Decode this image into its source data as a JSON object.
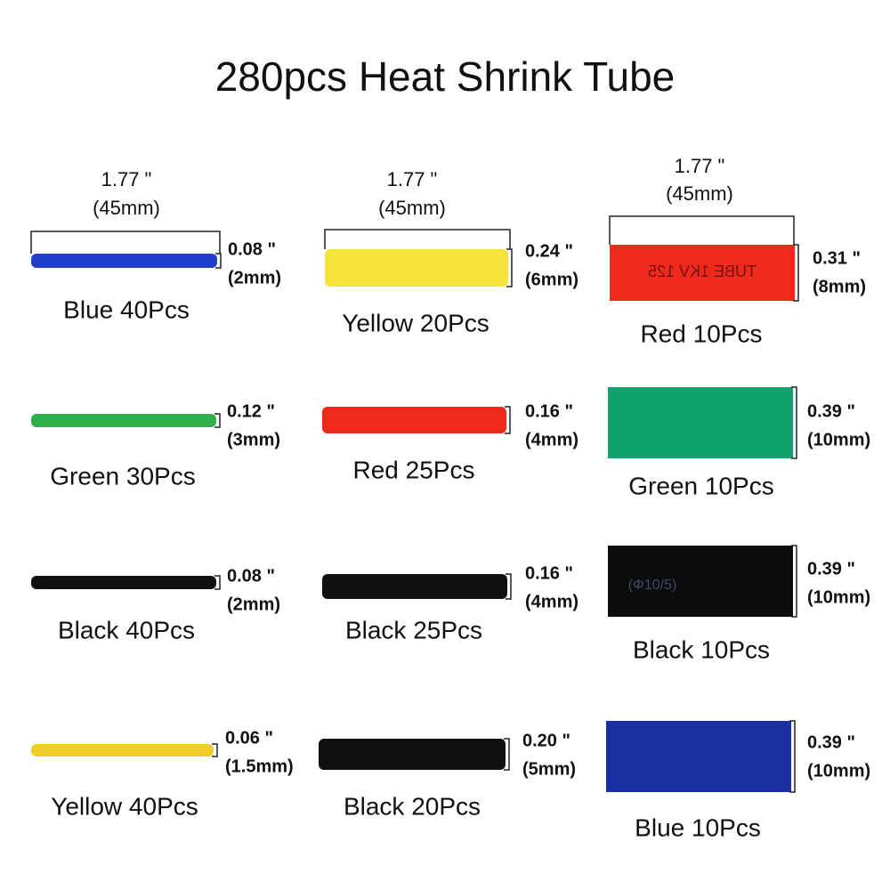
{
  "title": "280pcs Heat Shrink Tube",
  "columns": [
    {
      "length": {
        "inch": "1.77 \"",
        "mm": "(45mm)"
      },
      "items": [
        {
          "name": "Blue 40Pcs",
          "inch": "0.08 \"",
          "mm": "(2mm)"
        },
        {
          "name": "Green 30Pcs",
          "inch": "0.12 \"",
          "mm": "(3mm)"
        },
        {
          "name": "Black 40Pcs",
          "inch": "0.08 \"",
          "mm": "(2mm)"
        },
        {
          "name": "Yellow 40Pcs",
          "inch": "0.06 \"",
          "mm": "(1.5mm)"
        }
      ]
    },
    {
      "length": {
        "inch": "1.77 \"",
        "mm": "(45mm)"
      },
      "items": [
        {
          "name": "Yellow 20Pcs",
          "inch": "0.24 \"",
          "mm": "(6mm)"
        },
        {
          "name": "Red 25Pcs",
          "inch": "0.16 \"",
          "mm": "(4mm)"
        },
        {
          "name": "Black 25Pcs",
          "inch": "0.16 \"",
          "mm": "(4mm)"
        },
        {
          "name": "Black 20Pcs",
          "inch": "0.20 \"",
          "mm": "(5mm)"
        }
      ]
    },
    {
      "length": {
        "inch": "1.77 \"",
        "mm": "(45mm)"
      },
      "items": [
        {
          "name": "Red 10Pcs",
          "inch": "0.31 \"",
          "mm": "(8mm)"
        },
        {
          "name": "Green 10Pcs",
          "inch": "0.39 \"",
          "mm": "(10mm)"
        },
        {
          "name": "Black 10Pcs",
          "inch": "0.39 \"",
          "mm": "(10mm)"
        },
        {
          "name": "Blue 10Pcs",
          "inch": "0.39 \"",
          "mm": "(10mm)"
        }
      ]
    }
  ],
  "tube_prints": [
    "TUBE 1KV 125",
    "(Φ10/5)"
  ]
}
